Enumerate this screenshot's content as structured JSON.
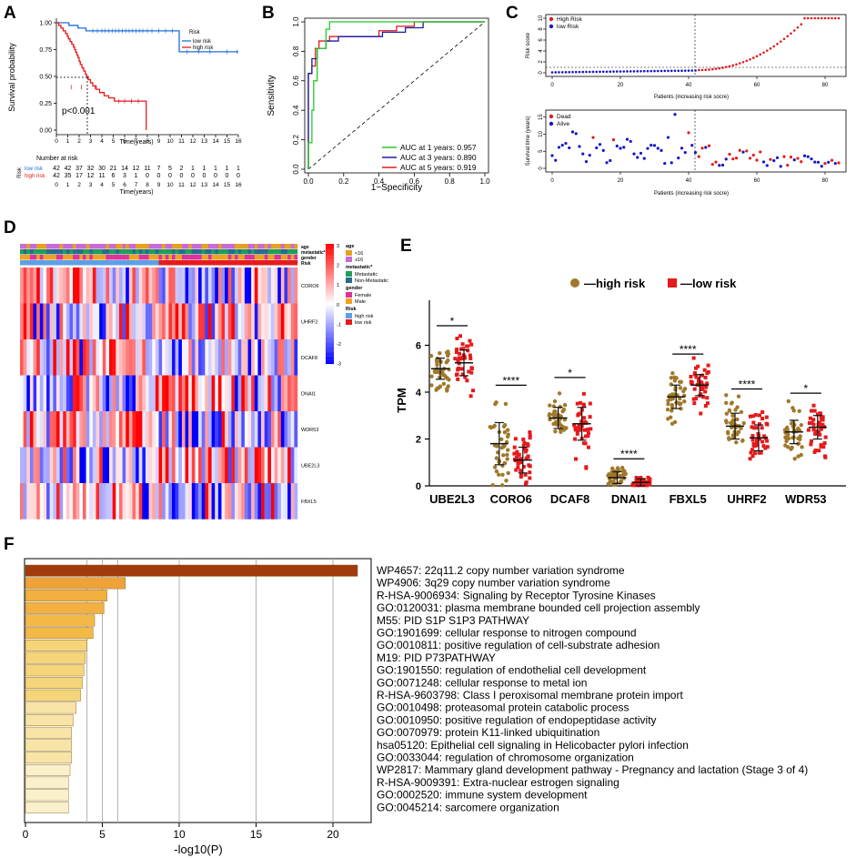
{
  "panels": {
    "A": "A",
    "B": "B",
    "C": "C",
    "D": "D",
    "E": "E",
    "F": "F"
  },
  "km": {
    "ylabel": "Survival probability",
    "xlabel": "Time(years)",
    "yticks": [
      "0.00",
      "0.25",
      "0.50",
      "0.75",
      "1.00"
    ],
    "xticks": [
      "0",
      "1",
      "2",
      "3",
      "4",
      "5",
      "6",
      "7",
      "8",
      "9",
      "10",
      "11",
      "12",
      "13",
      "14",
      "15",
      "16"
    ],
    "legend_title": "Risk",
    "legend_low": "low risk",
    "legend_high": "high risk",
    "pvalue": "p<0.001",
    "risk_table_title": "Number at risk",
    "risk_axis_label": "Risk",
    "risk_low_label": "low risk",
    "risk_high_label": "high risk",
    "risk_low": [
      "42",
      "42",
      "37",
      "32",
      "30",
      "21",
      "14",
      "12",
      "11",
      "7",
      "5",
      "2",
      "1",
      "1",
      "1",
      "1",
      "1"
    ],
    "risk_high": [
      "42",
      "35",
      "17",
      "12",
      "11",
      "6",
      "3",
      "1",
      "0",
      "0",
      "0",
      "0",
      "0",
      "0",
      "0",
      "0",
      "0"
    ],
    "table_xlabel": "Time(years)",
    "color_low": "#1e6fd9",
    "color_high": "#e41a1c"
  },
  "roc": {
    "ylabel": "Sensitivity",
    "xlabel": "1−Specificity",
    "yticks": [
      "0.0",
      "0.2",
      "0.4",
      "0.6",
      "0.8",
      "1.0"
    ],
    "xticks": [
      "0.0",
      "0.2",
      "0.4",
      "0.6",
      "0.8",
      "1.0"
    ],
    "legend": [
      {
        "label": "AUC at 1 years: 0.957",
        "color": "#22cc22"
      },
      {
        "label": "AUC at 3 years: 0.890",
        "color": "#1a1aa6"
      },
      {
        "label": "AUC at 5 years: 0.919",
        "color": "#e41a1c"
      }
    ]
  },
  "risk_curve": {
    "top_ylabel": "Risk score",
    "top_xlabel": "Patients (increasing risk socre)",
    "top_yticks": [
      "0",
      "2",
      "4",
      "6",
      "8",
      "10"
    ],
    "xticks": [
      "0",
      "20",
      "40",
      "60",
      "80"
    ],
    "legend_high": "High Risk",
    "legend_low": "low Risk",
    "bottom_ylabel": "Survival time (years)",
    "bottom_xlabel": "Patients (increasing risk socre)",
    "bottom_yticks": [
      "0",
      "5",
      "10",
      "15"
    ],
    "legend_dead": "Dead",
    "legend_alive": "Alive"
  },
  "heatmap": {
    "rows": [
      "CORO6",
      "UHRF2",
      "DCAF8",
      "DNAI1",
      "WDR53",
      "UBE2L3",
      "FBXL5"
    ],
    "annot_rows": [
      "age",
      "metastatic*",
      "gender",
      "Risk"
    ],
    "scale_ticks": [
      "3",
      "2",
      "1",
      "0",
      "-1",
      "-2",
      "-3"
    ],
    "legend": {
      "age_title": "age",
      "age_items": [
        "<16",
        "≥16"
      ],
      "met_title": "metastatic*",
      "met_items": [
        "Metastatic",
        "Non-Metastatic"
      ],
      "gender_title": "gender",
      "gender_items": [
        "Female",
        "Male"
      ],
      "risk_title": "Risk",
      "risk_items": [
        "high risk",
        "low risk"
      ]
    }
  },
  "tpm": {
    "ylabel": "TPM",
    "yticks": [
      "0",
      "2",
      "4",
      "6"
    ],
    "legend_high": "—high risk",
    "legend_low": "—low risk",
    "genes": [
      "UBE2L3",
      "CORO6",
      "DCAF8",
      "DNAI1",
      "FBXL5",
      "UHRF2",
      "WDR53"
    ],
    "sig": [
      "*",
      "****",
      "*",
      "****",
      "****",
      "****",
      "*"
    ],
    "color_high": "#a0782b",
    "color_low": "#e41a1c"
  },
  "chart_data": {
    "type": "bar",
    "title": "",
    "xlabel": "-log10(P)",
    "ylabel": "",
    "xlim": [
      0,
      22.5
    ],
    "xticks": [
      "0",
      "5",
      "10",
      "15",
      "20"
    ],
    "categories": [
      "WP4657: 22q11.2 copy number variation syndrome",
      "WP4906: 3q29 copy number variation syndrome",
      "R-HSA-9006934: Signaling by Receptor Tyrosine Kinases",
      "GO:0120031: plasma membrane bounded cell projection assembly",
      "M55: PID S1P S1P3 PATHWAY",
      "GO:1901699: cellular response to nitrogen compound",
      "GO:0010811: positive regulation of cell-substrate adhesion",
      "M19: PID P73PATHWAY",
      "GO:1901550: regulation of endothelial cell development",
      "GO:0071248: cellular response to metal ion",
      "R-HSA-9603798: Class I peroxisomal membrane protein import",
      "GO:0010498: proteasomal protein catabolic process",
      "GO:0010950: positive regulation of endopeptidase activity",
      "GO:0070979: protein K11-linked ubiquitination",
      "hsa05120: Epithelial cell signaling in Helicobacter pylori infection",
      "GO:0033044: regulation of chromosome organization",
      "WP2817: Mammary gland development pathway - Pregnancy and lactation (Stage 3 of 4)",
      "R-HSA-9009391: Extra-nuclear estrogen signaling",
      "GO:0002520: immune system development",
      "GO:0045214: sarcomere organization"
    ],
    "values": [
      21.6,
      6.5,
      5.3,
      5.1,
      4.5,
      4.4,
      4.0,
      3.9,
      3.8,
      3.7,
      3.6,
      3.3,
      3.1,
      3.0,
      3.0,
      3.0,
      2.9,
      2.8,
      2.8,
      2.8
    ],
    "colors": [
      "#a13a0c",
      "#f0a23a",
      "#f2b040",
      "#f2b040",
      "#f3b846",
      "#f3b846",
      "#f5d47a",
      "#f5d47a",
      "#f5d47a",
      "#f5d47a",
      "#f5d47a",
      "#f8e4a6",
      "#f8e4a6",
      "#f8e4a6",
      "#f8e4a6",
      "#f8e4a6",
      "#fbf0cc",
      "#fbf0cc",
      "#fbf0cc",
      "#fbf0cc"
    ]
  }
}
